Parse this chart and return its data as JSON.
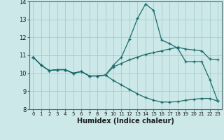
{
  "xlabel": "Humidex (Indice chaleur)",
  "xlim": [
    -0.5,
    23.5
  ],
  "ylim": [
    8,
    14
  ],
  "yticks": [
    8,
    9,
    10,
    11,
    12,
    13,
    14
  ],
  "xticks": [
    0,
    1,
    2,
    3,
    4,
    5,
    6,
    7,
    8,
    9,
    10,
    11,
    12,
    13,
    14,
    15,
    16,
    17,
    18,
    19,
    20,
    21,
    22,
    23
  ],
  "bg_color": "#cce8e8",
  "line_color": "#1a6b6b",
  "grid_color": "#aacccc",
  "line1_y": [
    10.9,
    10.45,
    10.15,
    10.2,
    10.2,
    10.0,
    10.1,
    9.85,
    9.85,
    9.9,
    10.45,
    10.9,
    11.9,
    13.05,
    13.85,
    13.5,
    11.85,
    11.65,
    11.4,
    10.65,
    10.65,
    10.65,
    9.65,
    8.45
  ],
  "line2_y": [
    10.9,
    10.45,
    10.15,
    10.2,
    10.2,
    10.0,
    10.1,
    9.85,
    9.85,
    9.9,
    10.35,
    10.55,
    10.75,
    10.9,
    11.05,
    11.15,
    11.25,
    11.35,
    11.45,
    11.35,
    11.3,
    11.25,
    10.8,
    10.75
  ],
  "line3_y": [
    10.9,
    10.45,
    10.15,
    10.2,
    10.2,
    10.0,
    10.1,
    9.85,
    9.85,
    9.9,
    9.6,
    9.35,
    9.1,
    8.85,
    8.65,
    8.5,
    8.4,
    8.4,
    8.42,
    8.5,
    8.55,
    8.6,
    8.6,
    8.45
  ]
}
